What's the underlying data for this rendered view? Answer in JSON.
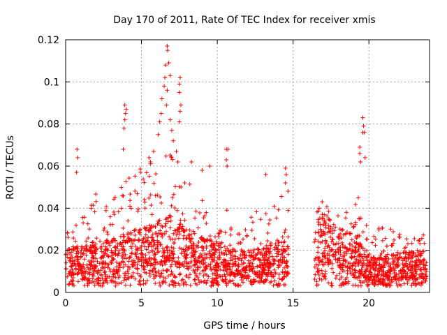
{
  "chart_data": {
    "type": "scatter",
    "title": "Day 170 of 2011, Rate Of TEC Index for receiver xmis",
    "xlabel": "GPS time / hours",
    "ylabel": "ROTI / TECUs",
    "xlim": [
      0,
      24
    ],
    "ylim": [
      0,
      0.12
    ],
    "x_ticks": [
      0,
      5,
      10,
      15,
      20
    ],
    "x_tick_labels": [
      "0",
      "5",
      "10",
      "15",
      "20"
    ],
    "y_ticks": [
      0,
      0.02,
      0.04,
      0.06,
      0.08,
      0.1,
      0.12
    ],
    "y_tick_labels": [
      "0",
      "0.02",
      "0.04",
      "0.06",
      "0.08",
      "0.1",
      "0.12"
    ],
    "grid": true,
    "marker": "plus",
    "marker_color": "#ff0000",
    "data_gap_hours": [
      14.7,
      16.4
    ],
    "envelope": {
      "x": [
        0,
        1,
        2,
        3,
        4,
        5,
        6,
        6.7,
        7,
        8,
        9,
        10,
        11,
        12,
        13,
        14,
        14.7,
        16.4,
        17,
        18,
        19,
        20,
        21,
        22,
        23,
        23.8
      ],
      "base": [
        0.013,
        0.014,
        0.015,
        0.016,
        0.018,
        0.02,
        0.022,
        0.024,
        0.023,
        0.02,
        0.017,
        0.015,
        0.013,
        0.012,
        0.013,
        0.015,
        0.016,
        0.022,
        0.025,
        0.02,
        0.018,
        0.01,
        0.01,
        0.011,
        0.012,
        0.012
      ],
      "peak": [
        0.028,
        0.04,
        0.048,
        0.05,
        0.055,
        0.06,
        0.065,
        0.07,
        0.065,
        0.055,
        0.045,
        0.04,
        0.04,
        0.038,
        0.04,
        0.045,
        0.058,
        0.04,
        0.045,
        0.038,
        0.045,
        0.03,
        0.032,
        0.03,
        0.028,
        0.028
      ]
    },
    "notable_points": [
      {
        "x": 0.75,
        "y": 0.068
      },
      {
        "x": 0.8,
        "y": 0.064
      },
      {
        "x": 0.72,
        "y": 0.057
      },
      {
        "x": 3.9,
        "y": 0.089
      },
      {
        "x": 4.0,
        "y": 0.087
      },
      {
        "x": 3.95,
        "y": 0.085
      },
      {
        "x": 3.9,
        "y": 0.082
      },
      {
        "x": 3.85,
        "y": 0.078
      },
      {
        "x": 3.8,
        "y": 0.068
      },
      {
        "x": 5.5,
        "y": 0.064
      },
      {
        "x": 5.6,
        "y": 0.062
      },
      {
        "x": 5.8,
        "y": 0.067
      },
      {
        "x": 6.1,
        "y": 0.075
      },
      {
        "x": 6.2,
        "y": 0.081
      },
      {
        "x": 6.3,
        "y": 0.085
      },
      {
        "x": 6.35,
        "y": 0.092
      },
      {
        "x": 6.5,
        "y": 0.098
      },
      {
        "x": 6.55,
        "y": 0.102
      },
      {
        "x": 6.6,
        "y": 0.108
      },
      {
        "x": 6.7,
        "y": 0.117
      },
      {
        "x": 6.72,
        "y": 0.115
      },
      {
        "x": 6.8,
        "y": 0.109
      },
      {
        "x": 6.9,
        "y": 0.103
      },
      {
        "x": 6.7,
        "y": 0.096
      },
      {
        "x": 6.65,
        "y": 0.089
      },
      {
        "x": 6.9,
        "y": 0.082
      },
      {
        "x": 7.0,
        "y": 0.077
      },
      {
        "x": 7.1,
        "y": 0.072
      },
      {
        "x": 7.3,
        "y": 0.067
      },
      {
        "x": 7.4,
        "y": 0.062
      },
      {
        "x": 7.5,
        "y": 0.099
      },
      {
        "x": 7.55,
        "y": 0.102
      },
      {
        "x": 7.5,
        "y": 0.095
      },
      {
        "x": 7.6,
        "y": 0.089
      },
      {
        "x": 7.55,
        "y": 0.086
      },
      {
        "x": 7.5,
        "y": 0.081
      },
      {
        "x": 8.3,
        "y": 0.062
      },
      {
        "x": 9.0,
        "y": 0.058
      },
      {
        "x": 9.5,
        "y": 0.06
      },
      {
        "x": 10.6,
        "y": 0.068
      },
      {
        "x": 10.7,
        "y": 0.068
      },
      {
        "x": 10.6,
        "y": 0.063
      },
      {
        "x": 10.65,
        "y": 0.06
      },
      {
        "x": 13.2,
        "y": 0.056
      },
      {
        "x": 14.5,
        "y": 0.059
      },
      {
        "x": 14.55,
        "y": 0.056
      },
      {
        "x": 14.5,
        "y": 0.052
      },
      {
        "x": 19.4,
        "y": 0.069
      },
      {
        "x": 19.4,
        "y": 0.066
      },
      {
        "x": 19.45,
        "y": 0.062
      },
      {
        "x": 19.6,
        "y": 0.083
      },
      {
        "x": 19.65,
        "y": 0.079
      },
      {
        "x": 19.6,
        "y": 0.076
      },
      {
        "x": 19.7,
        "y": 0.076
      },
      {
        "x": 19.75,
        "y": 0.064
      },
      {
        "x": 19.3,
        "y": 0.045
      }
    ]
  }
}
